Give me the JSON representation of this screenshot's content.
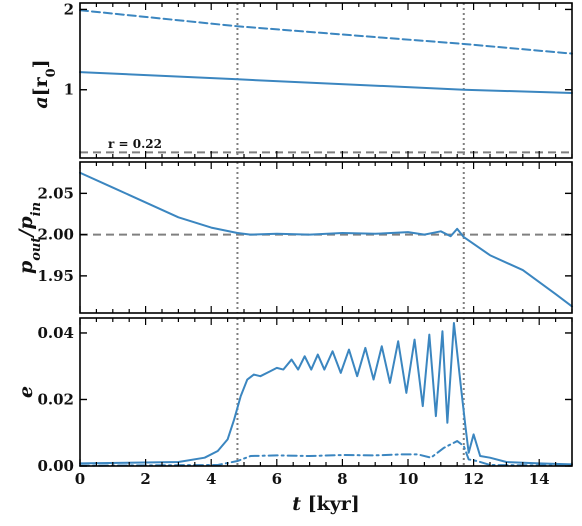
{
  "colors": {
    "line": "#3b86c0",
    "ref": "#808080",
    "axis": "#000000"
  },
  "chart_data": [
    {
      "type": "line",
      "panel": "semi-major axis",
      "ylabel": "a[r0]",
      "ylabel_parts": {
        "main": "a",
        "unit_open": "[r",
        "unit_sub": "0",
        "unit_close": "]"
      },
      "xlim": [
        0,
        15
      ],
      "ylim": [
        0.15,
        2.08
      ],
      "yticks": [
        1,
        2
      ],
      "ytick_labels": [
        "1",
        "2"
      ],
      "annotation": "r = 0.22",
      "hlines": [
        0.22
      ],
      "vlines": [
        4.8,
        11.7
      ],
      "series": [
        {
          "style": "dashed",
          "x": [
            0,
            4.8,
            11.7,
            15
          ],
          "y": [
            1.99,
            1.79,
            1.57,
            1.45
          ]
        },
        {
          "style": "solid",
          "x": [
            0,
            4.8,
            11.7,
            15
          ],
          "y": [
            1.22,
            1.13,
            1.0,
            0.96
          ]
        }
      ]
    },
    {
      "type": "line",
      "panel": "period ratio",
      "ylabel": "pout/pin",
      "ylabel_parts": {
        "main": "p",
        "num_sub": "out",
        "sep": "/",
        "den": "p",
        "den_sub": "in"
      },
      "xlim": [
        0,
        15
      ],
      "ylim": [
        1.905,
        2.088
      ],
      "yticks": [
        1.95,
        2.0,
        2.05
      ],
      "ytick_labels": [
        "1.95",
        "2.00",
        "2.05"
      ],
      "hlines": [
        2.0
      ],
      "vlines": [
        4.8,
        11.7
      ],
      "series": [
        {
          "style": "solid",
          "x": [
            0,
            1,
            2,
            3,
            4,
            4.8,
            5.2,
            6,
            7,
            8,
            9,
            10,
            10.5,
            11,
            11.3,
            11.5,
            11.7,
            12.5,
            13.5,
            14.5,
            15
          ],
          "y": [
            2.075,
            2.057,
            2.039,
            2.021,
            2.0085,
            2.002,
            2.0,
            2.001,
            2.0,
            2.002,
            2.001,
            2.003,
            2.0,
            2.004,
            1.998,
            2.007,
            1.997,
            1.975,
            1.957,
            1.928,
            1.913
          ]
        }
      ]
    },
    {
      "type": "line",
      "panel": "eccentricity",
      "ylabel": "e",
      "xlabel": "t [kyr]",
      "xlabel_parts": {
        "main": "t",
        "unit": " [kyr]"
      },
      "xlim": [
        0,
        15
      ],
      "ylim": [
        0,
        0.0445
      ],
      "xticks": [
        0,
        2,
        4,
        6,
        8,
        10,
        12,
        14
      ],
      "xtick_labels": [
        "0",
        "2",
        "4",
        "6",
        "8",
        "10",
        "12",
        "14"
      ],
      "yticks": [
        0,
        0.02,
        0.04
      ],
      "ytick_labels": [
        "0.00",
        "0.02",
        "0.04"
      ],
      "vlines": [
        4.8,
        11.7
      ],
      "series": [
        {
          "style": "solid",
          "x": [
            0,
            3,
            3.8,
            4.2,
            4.5,
            4.7,
            4.9,
            5.1,
            5.3,
            5.5,
            5.8,
            6.0,
            6.2,
            6.45,
            6.65,
            6.85,
            7.05,
            7.25,
            7.45,
            7.7,
            7.95,
            8.2,
            8.45,
            8.7,
            8.95,
            9.2,
            9.45,
            9.7,
            9.95,
            10.2,
            10.45,
            10.65,
            10.85,
            11.05,
            11.2,
            11.4,
            11.6,
            11.75,
            11.85,
            12.0,
            12.2,
            12.5,
            13,
            14,
            15
          ],
          "y": [
            0.0008,
            0.0012,
            0.0025,
            0.0045,
            0.008,
            0.014,
            0.021,
            0.026,
            0.0275,
            0.027,
            0.0285,
            0.0295,
            0.029,
            0.032,
            0.029,
            0.033,
            0.029,
            0.0335,
            0.029,
            0.0345,
            0.028,
            0.035,
            0.027,
            0.0355,
            0.026,
            0.036,
            0.025,
            0.0375,
            0.022,
            0.038,
            0.018,
            0.0395,
            0.015,
            0.0405,
            0.013,
            0.043,
            0.025,
            0.012,
            0.004,
            0.0095,
            0.003,
            0.0025,
            0.0012,
            0.0008,
            0.0005
          ]
        },
        {
          "style": "dashdot",
          "x": [
            0,
            4.2,
            4.8,
            5.2,
            6,
            7,
            8,
            9,
            9.8,
            10.3,
            10.7,
            11.1,
            11.5,
            11.7,
            11.85,
            12.1,
            12.5,
            15
          ],
          "y": [
            0.0001,
            0.0003,
            0.0015,
            0.003,
            0.0032,
            0.003,
            0.0033,
            0.0032,
            0.0035,
            0.0035,
            0.0025,
            0.0055,
            0.0075,
            0.006,
            0.002,
            0.0015,
            0.0003,
            0.0001
          ]
        }
      ]
    }
  ]
}
